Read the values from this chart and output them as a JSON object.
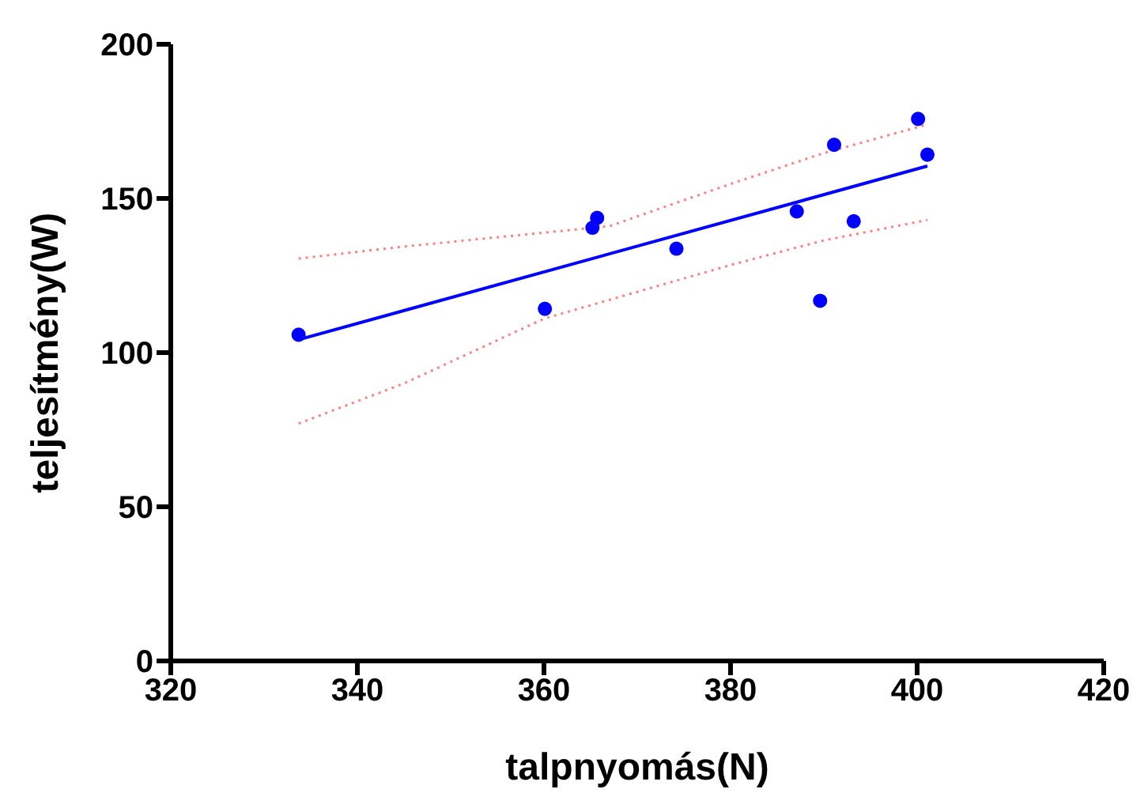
{
  "chart_data": {
    "type": "scatter",
    "xlabel": "talpnyomás(N)",
    "ylabel": "teljesítmény(W)",
    "xlim": [
      320,
      420
    ],
    "xticks": [
      320,
      340,
      360,
      380,
      400,
      420
    ],
    "ylim": [
      0,
      200
    ],
    "yticks": [
      0,
      50,
      100,
      150,
      200
    ],
    "grid": false,
    "marker": "circle",
    "series": [
      {
        "type": "scatter",
        "color": "#0000ff",
        "x": [
          333.7,
          360.1,
          365.2,
          365.7,
          374.2,
          387.1,
          389.6,
          391.1,
          393.2,
          400.1,
          401.1
        ],
        "values": [
          105.8,
          114.2,
          140.5,
          143.7,
          133.7,
          145.8,
          116.8,
          167.4,
          142.6,
          175.8,
          164.2
        ]
      },
      {
        "type": "line",
        "color": "#0000ff",
        "line_style": "solid",
        "marker": "none",
        "x": [
          333.7,
          401.1
        ],
        "values": [
          104.2,
          160.5
        ]
      },
      {
        "type": "line",
        "color": "#ff8080",
        "line_style": "dotted",
        "marker": "none",
        "x": [
          333.7,
          345,
          367,
          380,
          390,
          401.1
        ],
        "values": [
          130.5,
          134.4,
          141,
          154.7,
          164.7,
          174
        ]
      },
      {
        "type": "line",
        "color": "#ff8080",
        "line_style": "dotted",
        "marker": "none",
        "x": [
          333.7,
          345,
          360,
          380,
          390,
          401.1
        ],
        "values": [
          77,
          90,
          111,
          128.4,
          136.4,
          143
        ]
      }
    ]
  }
}
